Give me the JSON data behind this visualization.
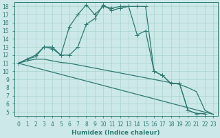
{
  "xlabel": "Humidex (Indice chaleur)",
  "bg_color": "#cce8e8",
  "line_color": "#2d7a72",
  "grid_color": "#aad4cc",
  "xlim": [
    -0.5,
    23.5
  ],
  "ylim": [
    4.5,
    18.5
  ],
  "yticks": [
    5,
    6,
    7,
    8,
    9,
    10,
    11,
    12,
    13,
    14,
    15,
    16,
    17,
    18
  ],
  "xticks": [
    0,
    1,
    2,
    3,
    4,
    5,
    6,
    7,
    8,
    9,
    10,
    11,
    12,
    13,
    14,
    15,
    16,
    17,
    18,
    19,
    20,
    21,
    22,
    23
  ],
  "line1_x": [
    0,
    1,
    2,
    3,
    4,
    5,
    6,
    7,
    8,
    9,
    10,
    11,
    12,
    13,
    14,
    15,
    16,
    17,
    18,
    19,
    20,
    21,
    22
  ],
  "line1_y": [
    11,
    11.5,
    12,
    13,
    13,
    12,
    15.5,
    17,
    18.2,
    17,
    18,
    17.8,
    18,
    18,
    14.5,
    15,
    10,
    9.5,
    8.5,
    8.5,
    5.2,
    4.8,
    4.8
  ],
  "line2_x": [
    0,
    1,
    2,
    3,
    4,
    5,
    6,
    7,
    8,
    9,
    10,
    11,
    12,
    13,
    14,
    15,
    16,
    17,
    18,
    19,
    20,
    21,
    22
  ],
  "line2_y": [
    11,
    11.5,
    11.8,
    13,
    12.8,
    12,
    12,
    13,
    15.8,
    16.5,
    18.2,
    17.5,
    17.8,
    18,
    18,
    18,
    10,
    9.5,
    8.5,
    8.5,
    5.2,
    4.8,
    4.8
  ],
  "line3_x": [
    0,
    1,
    2,
    3,
    4,
    5,
    6,
    7,
    8,
    9,
    10,
    11,
    12,
    13,
    14,
    15,
    16,
    17,
    18,
    19,
    20,
    21,
    22,
    23
  ],
  "line3_y": [
    11,
    11.3,
    11.5,
    11.5,
    11.3,
    11.1,
    11.0,
    10.8,
    10.6,
    10.4,
    10.2,
    10.0,
    9.8,
    9.6,
    9.4,
    9.2,
    9.0,
    8.8,
    8.6,
    8.4,
    8.0,
    7.5,
    5.2,
    4.7
  ],
  "line4_x": [
    0,
    23
  ],
  "line4_y": [
    11,
    4.7
  ],
  "marker_size": 2.5,
  "lw": 0.9,
  "xlabel_fontsize": 6.5,
  "tick_fontsize": 5.5
}
